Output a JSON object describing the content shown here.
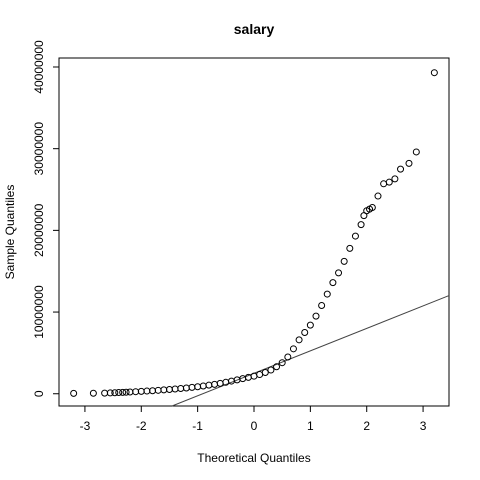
{
  "chart_data": {
    "type": "scatter",
    "title": "salary",
    "x_label": "Theoretical Quantiles",
    "y_label": "Sample Quantiles",
    "x": [
      -3.2,
      -2.85,
      -2.65,
      -2.55,
      -2.47,
      -2.4,
      -2.33,
      -2.27,
      -2.2,
      -2.1,
      -2.0,
      -1.9,
      -1.8,
      -1.7,
      -1.6,
      -1.5,
      -1.4,
      -1.3,
      -1.2,
      -1.1,
      -1.0,
      -0.9,
      -0.8,
      -0.7,
      -0.6,
      -0.5,
      -0.4,
      -0.3,
      -0.2,
      -0.1,
      0.0,
      0.1,
      0.2,
      0.3,
      0.4,
      0.5,
      0.6,
      0.7,
      0.8,
      0.9,
      1.0,
      1.1,
      1.2,
      1.3,
      1.4,
      1.5,
      1.6,
      1.7,
      1.8,
      1.9,
      1.95,
      2.0,
      2.05,
      2.1,
      2.2,
      2.3,
      2.4,
      2.5,
      2.6,
      2.75,
      2.88,
      3.2
    ],
    "y": [
      50000,
      60000,
      80000,
      100000,
      120000,
      150000,
      170000,
      190000,
      210000,
      250000,
      290000,
      330000,
      370000,
      420000,
      470000,
      520000,
      580000,
      640000,
      700000,
      780000,
      860000,
      950000,
      1050000,
      1150000,
      1270000,
      1400000,
      1550000,
      1700000,
      1850000,
      2000000,
      2150000,
      2350000,
      2600000,
      2900000,
      3300000,
      3800000,
      4500000,
      5500000,
      6600000,
      7500000,
      8400000,
      9500000,
      10800000,
      12200000,
      13600000,
      14800000,
      16200000,
      17800000,
      19300000,
      20700000,
      21800000,
      22400000,
      22600000,
      22800000,
      24200000,
      25700000,
      25900000,
      26300000,
      27500000,
      28200000,
      29600000,
      39300000
    ],
    "color": "#000000",
    "reference_line": {
      "intercept": 2500000,
      "slope": 2750000,
      "color": "#444444"
    },
    "xlim": [
      -3.46,
      3.46
    ],
    "ylim": [
      -1500000,
      41100000
    ],
    "xticks": [
      -3,
      -2,
      -1,
      0,
      1,
      2,
      3
    ],
    "yticks": [
      0,
      10000000,
      20000000,
      30000000,
      40000000
    ]
  }
}
